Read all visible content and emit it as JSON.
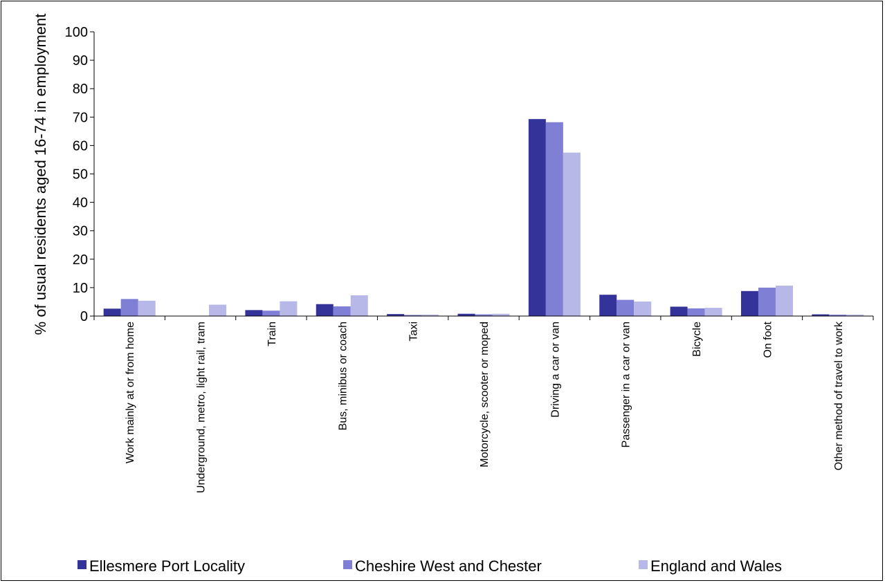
{
  "chart_data": {
    "type": "bar",
    "title": "",
    "xlabel": "",
    "ylabel": "% of usual residents aged 16-74 in employment",
    "ylim": [
      0,
      100
    ],
    "yticks": [
      0,
      10,
      20,
      30,
      40,
      50,
      60,
      70,
      80,
      90,
      100
    ],
    "grid": false,
    "legend_position": "bottom",
    "categories": [
      "Work mainly at or from home",
      "Underground, metro, light rail, tram",
      "Train",
      "Bus, minibus or coach",
      "Taxi",
      "Motorcycle, scooter or moped",
      "Driving a car or van",
      "Passenger in a car or van",
      "Bicycle",
      "On foot",
      "Other method of travel to work"
    ],
    "series": [
      {
        "name": "Ellesmere Port Locality",
        "color": "#333399",
        "values": [
          2.6,
          0.1,
          2.1,
          4.2,
          0.7,
          0.8,
          69.3,
          7.5,
          3.3,
          8.8,
          0.6
        ]
      },
      {
        "name": "Cheshire West and Chester",
        "color": "#7f7fd6",
        "values": [
          6.0,
          0.1,
          1.9,
          3.4,
          0.4,
          0.6,
          68.2,
          5.7,
          2.7,
          10.0,
          0.5
        ]
      },
      {
        "name": "England and Wales",
        "color": "#b7b7e8",
        "values": [
          5.4,
          4.0,
          5.2,
          7.3,
          0.5,
          0.8,
          57.5,
          5.1,
          2.9,
          10.7,
          0.5
        ]
      }
    ]
  }
}
